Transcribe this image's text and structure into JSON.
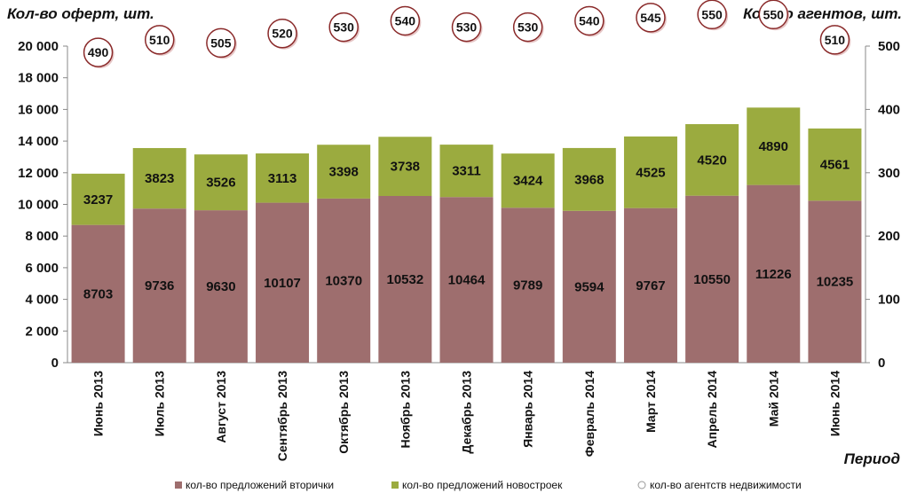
{
  "chart_data": {
    "type": "bar",
    "stacked": true,
    "title": "",
    "ylabel_left": "Кол-во оферт, шт.",
    "ylabel_right": "Кол-во агентов, шт.",
    "xlabel": "Период",
    "categories": [
      "Июнь 2013",
      "Июль 2013",
      "Август 2013",
      "Сентябрь 2013",
      "Октябрь 2013",
      "Ноябрь 2013",
      "Декабрь 2013",
      "Январь 2014",
      "Февраль 2014",
      "Март 2014",
      "Апрель 2014",
      "Май 2014",
      "Июнь 2014"
    ],
    "series": [
      {
        "name": "кол-во предложений вторички",
        "color": "#9e6e6e",
        "values": [
          8703,
          9736,
          9630,
          10107,
          10370,
          10532,
          10464,
          9789,
          9594,
          9767,
          10550,
          11226,
          10235
        ]
      },
      {
        "name": "кол-во предложений новостроек",
        "color": "#9bab3f",
        "values": [
          3237,
          3823,
          3526,
          3113,
          3398,
          3738,
          3311,
          3424,
          3968,
          4525,
          4520,
          4890,
          4561
        ]
      },
      {
        "name": "кол-во агентств недвижимости",
        "axis": "right",
        "type": "scatter",
        "values": [
          490,
          510,
          505,
          520,
          530,
          540,
          530,
          530,
          540,
          545,
          550,
          550,
          510
        ]
      }
    ],
    "ylim_left": [
      0,
      20000
    ],
    "yticks_left": [
      "0",
      "2 000",
      "4 000",
      "6 000",
      "8 000",
      "10 000",
      "12 000",
      "14 000",
      "16 000",
      "18 000",
      "20 000"
    ],
    "ylim_right": [
      0,
      500
    ],
    "yticks_right": [
      "0",
      "100",
      "200",
      "300",
      "400",
      "500"
    ],
    "legend": "bottom"
  }
}
